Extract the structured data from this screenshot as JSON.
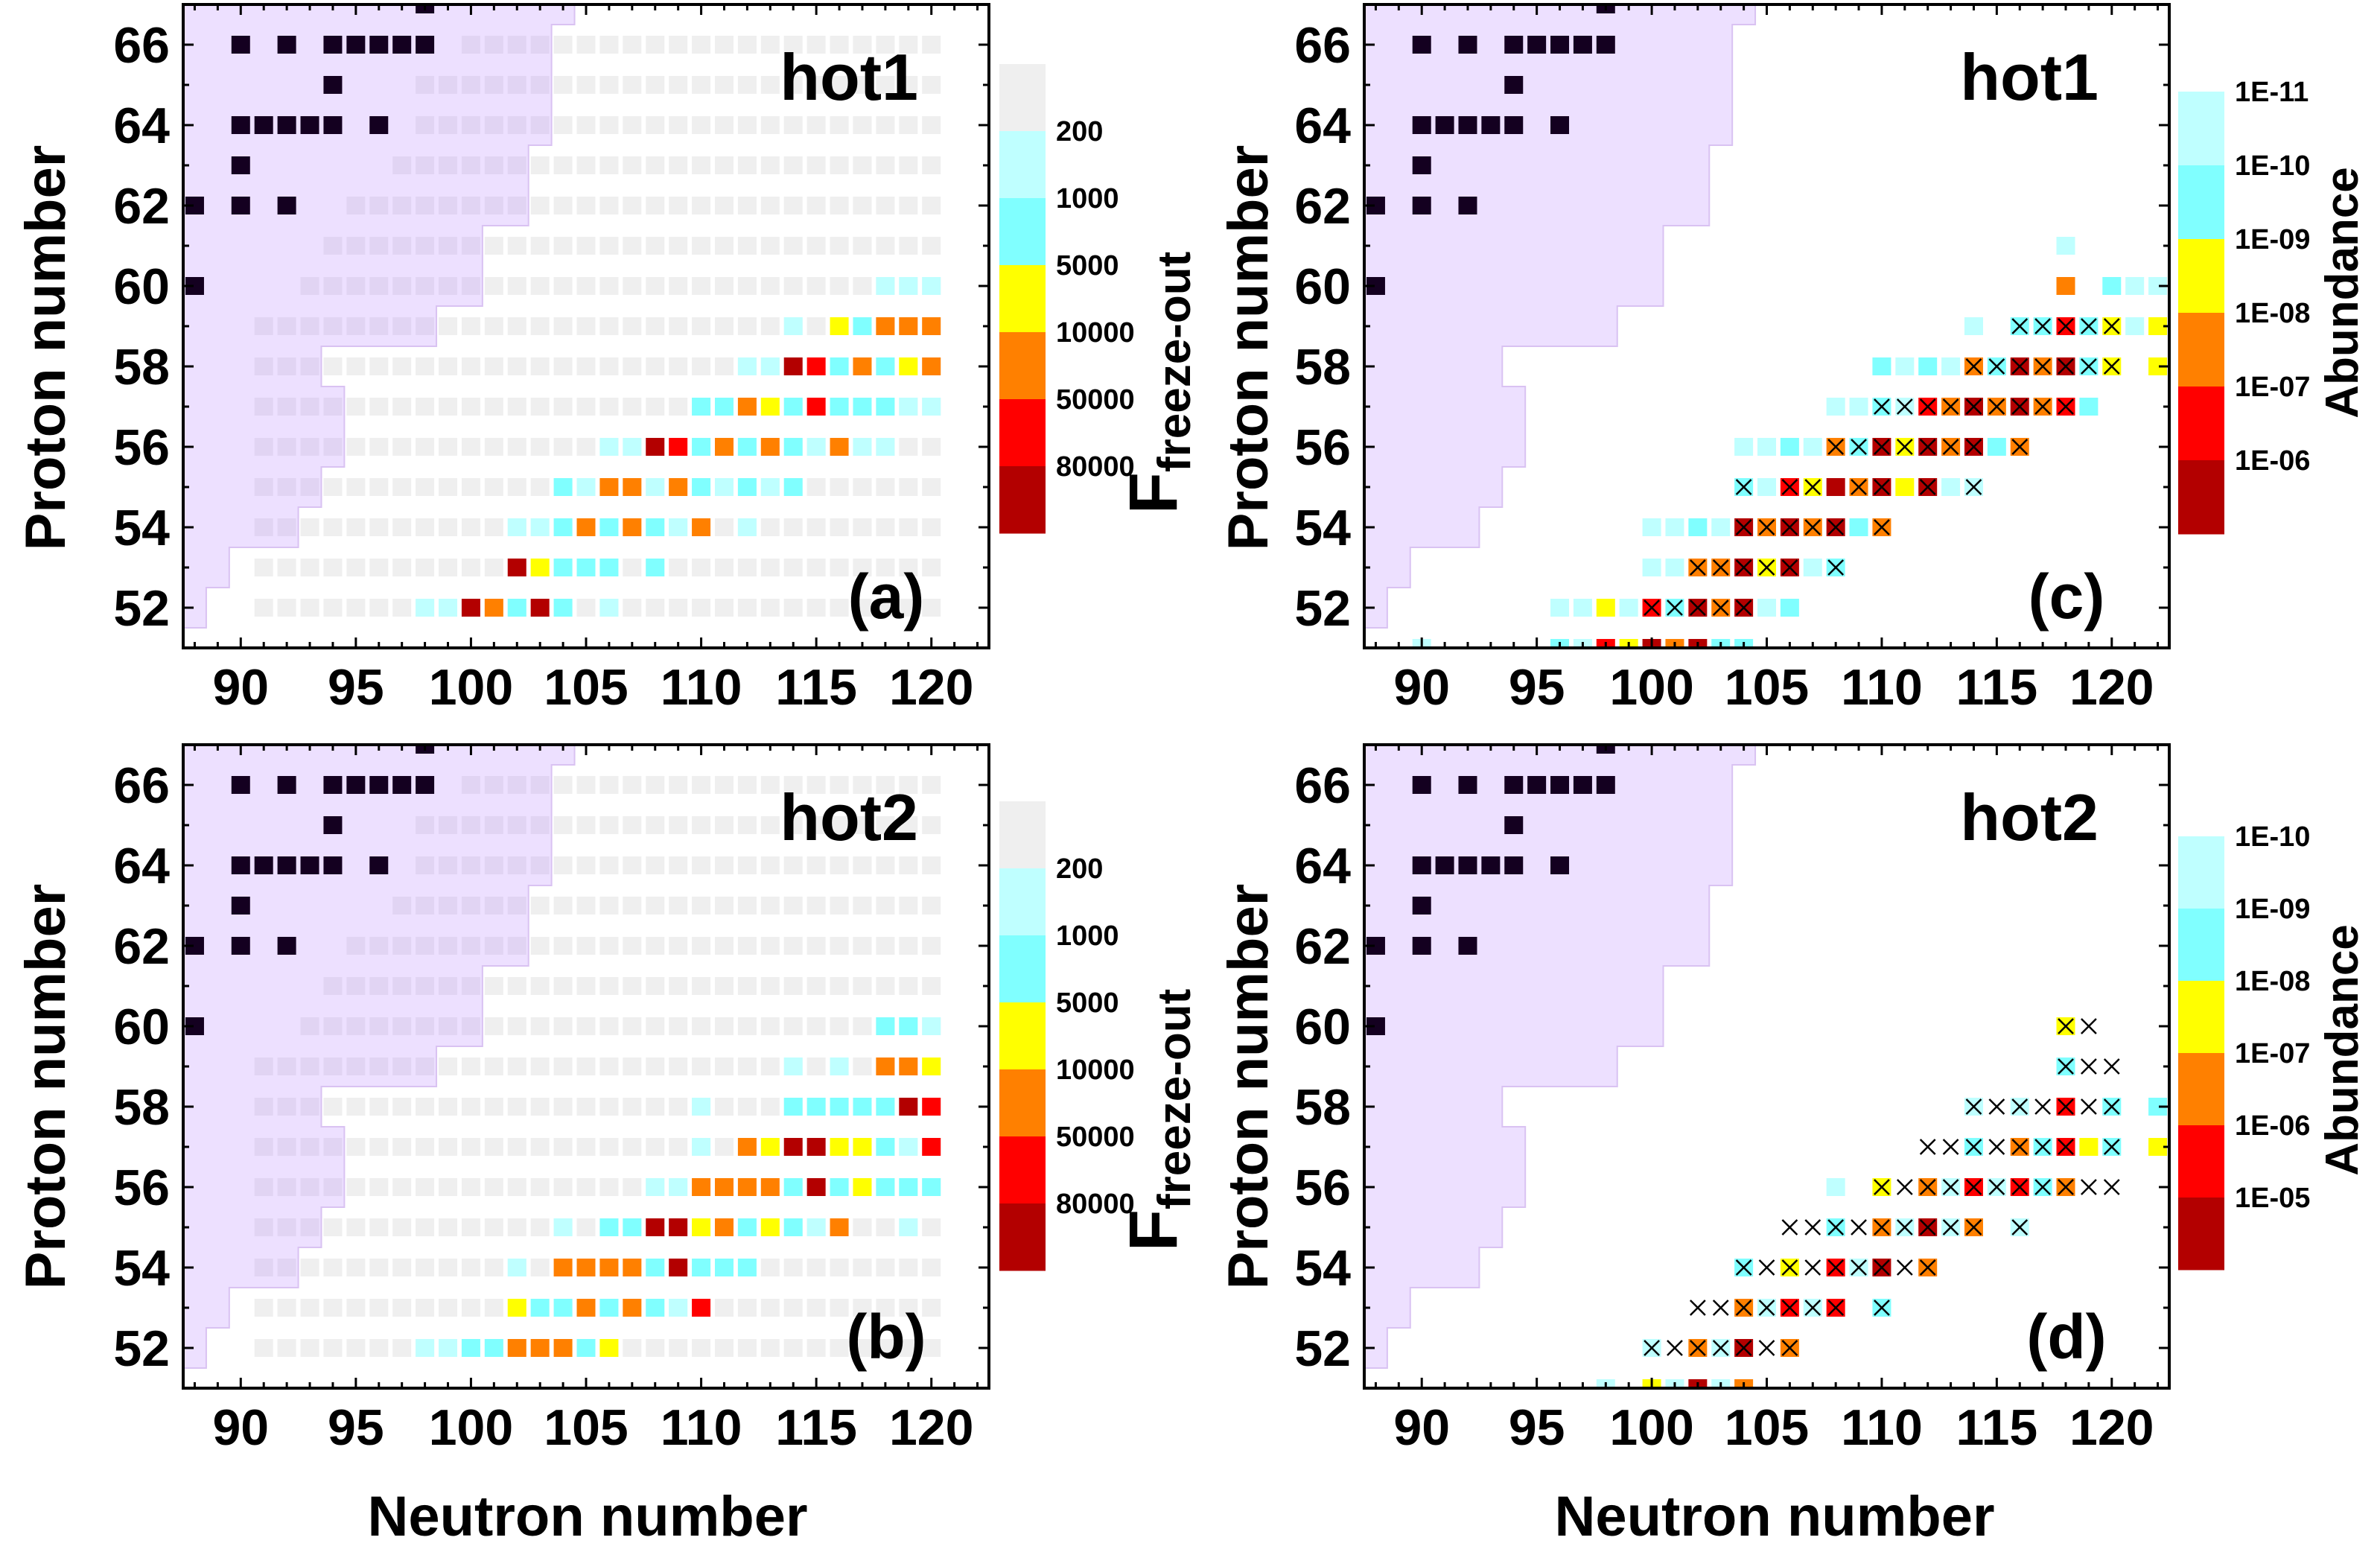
{
  "colors": {
    "g": "#efefef",
    "L": "#bfffff",
    "C": "#80ffff",
    "Y": "#ffff00",
    "O": "#ff8000",
    "R": "#ff0000",
    "D": "#b30000",
    "stable": "#140020",
    "stable_region": "#eedfff",
    "stable_region_edge": "#d9c2f2"
  },
  "chart_data": [
    {
      "type": "heatmap",
      "panel_label": "(a)",
      "title": "hot1",
      "xlabel": "",
      "ylabel": "Proton number",
      "xlim": [
        87.5,
        122.5
      ],
      "ylim": [
        51,
        67
      ],
      "xticks": [
        "90",
        "95",
        "100",
        "105",
        "110",
        "115",
        "120"
      ],
      "yticks": [
        "52",
        "54",
        "56",
        "58",
        "60",
        "62",
        "64",
        "66"
      ],
      "grid": false,
      "colorbar": {
        "title": "F",
        "title_sub": "freeze-out",
        "bins": [
          "g",
          "L",
          "C",
          "Y",
          "O",
          "R",
          "D"
        ],
        "labels": [
          "200",
          "1000",
          "5000",
          "10000",
          "50000",
          "80000"
        ],
        "label_mode": "boundaries"
      },
      "network_start_N": {
        "66": 100,
        "65": 98,
        "64": 98,
        "63": 97,
        "62": 95,
        "61": 94,
        "60": 93,
        "59": 91,
        "58": 91,
        "57": 91,
        "56": 91,
        "55": 91,
        "54": 91,
        "53": 91,
        "52": 91
      },
      "network_end_N": 120,
      "cells": {
        "60": "118L 119L 120L",
        "59": "114L 116Y 117C 118O 119O 120O",
        "58": "112L 113L 114D 115R 116C 117O 118C 119Y 120O",
        "57": "110C 111C 112O 113Y 114C 115R 116C 117C 118C 119L 120L",
        "56": "106L 107L 108D 109R 110C 111O 112C 113O 114C 115L 116O 117L 118L",
        "55": "104C 105L 106O 107O 108L 109O 110C 111L 112C 113L 114C",
        "54": "102L 103L 104C 105O 106C 107O 108C 109L 110O 112L",
        "53": "102D 103Y 104C 105C 106C 108C",
        "52": "98L 99L 100D 101O 102C 103D 104C 106L"
      }
    },
    {
      "type": "heatmap",
      "panel_label": "(b)",
      "title": "hot2",
      "xlabel": "Neutron number",
      "ylabel": "Proton number",
      "xlim": [
        87.5,
        122.5
      ],
      "ylim": [
        51,
        67
      ],
      "xticks": [
        "90",
        "95",
        "100",
        "105",
        "110",
        "115",
        "120"
      ],
      "yticks": [
        "52",
        "54",
        "56",
        "58",
        "60",
        "62",
        "64",
        "66"
      ],
      "grid": false,
      "colorbar": {
        "title": "F",
        "title_sub": "freeze-out",
        "bins": [
          "g",
          "L",
          "C",
          "Y",
          "O",
          "R",
          "D"
        ],
        "labels": [
          "200",
          "1000",
          "5000",
          "10000",
          "50000",
          "80000"
        ],
        "label_mode": "boundaries"
      },
      "network_start_N": {
        "66": 100,
        "65": 98,
        "64": 98,
        "63": 97,
        "62": 95,
        "61": 94,
        "60": 93,
        "59": 91,
        "58": 91,
        "57": 91,
        "56": 91,
        "55": 91,
        "54": 91,
        "53": 91,
        "52": 91
      },
      "network_end_N": 120,
      "cells": {
        "60": "118C 119C 120L",
        "59": "114L 116L 118O 119O 120Y",
        "58": "110L 114C 115C 116C 117C 118C 119D 120R",
        "57": "110L 112O 113Y 114D 115D 116Y 117Y 118C 119L 120R",
        "56": "108L 109L 110O 111O 112O 113O 114C 115D 116C 117Y 118C 119C 120C",
        "55": "104L 106C 107C 108D 109D 110Y 111O 112C 113Y 114C 115L 116O 119L",
        "54": "102L 104O 105O 106O 107O 108C 109D 110C 111C 112C",
        "53": "102Y 103C 104C 105O 106C 107O 108C 109L 110R",
        "52": "98L 99L 100C 101C 102O 103O 104O 105C 106Y"
      }
    },
    {
      "type": "heatmap",
      "panel_label": "(c)",
      "title": "hot1",
      "xlabel": "",
      "ylabel": "Proton number",
      "xlim": [
        87.5,
        122.5
      ],
      "ylim": [
        51,
        67
      ],
      "xticks": [
        "90",
        "95",
        "100",
        "105",
        "110",
        "115",
        "120"
      ],
      "yticks": [
        "52",
        "54",
        "56",
        "58",
        "60",
        "62",
        "64",
        "66"
      ],
      "grid": false,
      "colorbar": {
        "title": "Abundance",
        "bins": [
          "L",
          "C",
          "Y",
          "O",
          "R",
          "D"
        ],
        "labels": [
          "1E-11",
          "1E-10",
          "1E-09",
          "1E-08",
          "1E-07",
          "1E-06"
        ],
        "label_mode": "top_and_boundaries"
      },
      "cells": {
        "61": "118L",
        "60": "118O 120C 121L 122L",
        "59": "114L 116Cx 117Cx 118Rx 119Cx 120Yx 121L 122Y",
        "58": "110C 111L 112C 113L 114Ox 115Cx 116Dx 117Ox 118Dx 119Cx 120Yx 122Y",
        "57": "108L 109L 110Cx 111Lx 112Rx 113Ox 114Dx 115Ox 116Dx 117Ox 118Rx 119C",
        "56": "104L 105L 106C 107L 108Ox 109Cx 110Dx 111Yx 112Dx 113Ox 114Dx 115C 116Ox",
        "55": "104Cx 105L 106Rx 107Yx 108D 109Ox 110Dx 111Y 112Dx 113L 114Lx",
        "54": "100L 101L 102C 103L 104Dx 105Ox 106Dx 107Ox 108Dx 109C 110Ox",
        "53": "100L 101L 102Ox 103Ox 104Dx 105Yx 106Dx 107L 108Cx",
        "52": "96L 97L 98Y 99L 100Rx 101Cx 102Dx 103Ox 104Dx 105L 106C",
        "51": "90L 96C 97L 98R 99Y 100D 101O 102D 103C 104C"
      }
    },
    {
      "type": "heatmap",
      "panel_label": "(d)",
      "title": "hot2",
      "xlabel": "Neutron number",
      "ylabel": "Proton number",
      "xlim": [
        87.5,
        122.5
      ],
      "ylim": [
        51,
        67
      ],
      "xticks": [
        "90",
        "95",
        "100",
        "105",
        "110",
        "115",
        "120"
      ],
      "yticks": [
        "52",
        "54",
        "56",
        "58",
        "60",
        "62",
        "64",
        "66"
      ],
      "grid": false,
      "colorbar": {
        "title": "Abundance",
        "bins": [
          "L",
          "C",
          "Y",
          "O",
          "R",
          "D"
        ],
        "labels": [
          "1E-10",
          "1E-09",
          "1E-08",
          "1E-07",
          "1E-06",
          "1E-05"
        ],
        "label_mode": "top_and_boundaries"
      },
      "cells": {
        "60": "118Yx 119x",
        "59": "118Cx 119x 120x",
        "58": "114Lx 115x 116Lx 117x 118Rx 119x 120Cx 122C",
        "57": "112x 113x 114Cx 115x 116Ox 117Cx 118Rx 119Y 120Cx 122Y",
        "56": "108L 110Yx 111x 112Ox 113Lx 114Rx 115Lx 116Rx 117Cx 118Ox 119x 120x",
        "55": "106x 107x 108Cx 109x 110Ox 111Lx 112Dx 113Lx 114Ox 116Lx",
        "54": "104Cx 105x 106Yx 107x 108Rx 109Lx 110Dx 111x 112Ox",
        "53": "102x 103x 104Ox 105Lx 106Rx 107Lx 108Rx 110Cx",
        "52": "100Lx 101x 102Ox 103Lx 104Dx 105x 106Ox",
        "51": "98L 100Y 101L 102D 103L 104O"
      }
    }
  ],
  "stable_nuclei": {
    "67": [
      98
    ],
    "66": [
      90,
      92,
      94,
      95,
      96,
      97,
      98
    ],
    "65": [
      94
    ],
    "64": [
      90,
      91,
      92,
      93,
      94,
      96
    ],
    "63": [
      90
    ],
    "62": [
      88,
      90,
      92
    ],
    "60": [
      88
    ]
  },
  "stable_region_boundary": [
    {
      "Z_range": [
        66.5,
        67
      ],
      "N_max": 104.5
    },
    {
      "Z_range": [
        63.5,
        66.5
      ],
      "N_max": 103.5
    },
    {
      "Z_range": [
        61.5,
        63.5
      ],
      "N_max": 102.5
    },
    {
      "Z_range": [
        59.5,
        61.5
      ],
      "N_max": 100.5
    },
    {
      "Z_range": [
        58.5,
        59.5
      ],
      "N_max": 98.5
    },
    {
      "Z_range": [
        57.5,
        58.5
      ],
      "N_max": 93.5
    },
    {
      "Z_range": [
        55.5,
        57.5
      ],
      "N_max": 94.5
    },
    {
      "Z_range": [
        54.5,
        55.5
      ],
      "N_max": 93.5
    },
    {
      "Z_range": [
        53.5,
        54.5
      ],
      "N_max": 92.5
    },
    {
      "Z_range": [
        52.5,
        53.5
      ],
      "N_max": 89.5
    },
    {
      "Z_range": [
        51.5,
        52.5
      ],
      "N_max": 88.5
    }
  ]
}
